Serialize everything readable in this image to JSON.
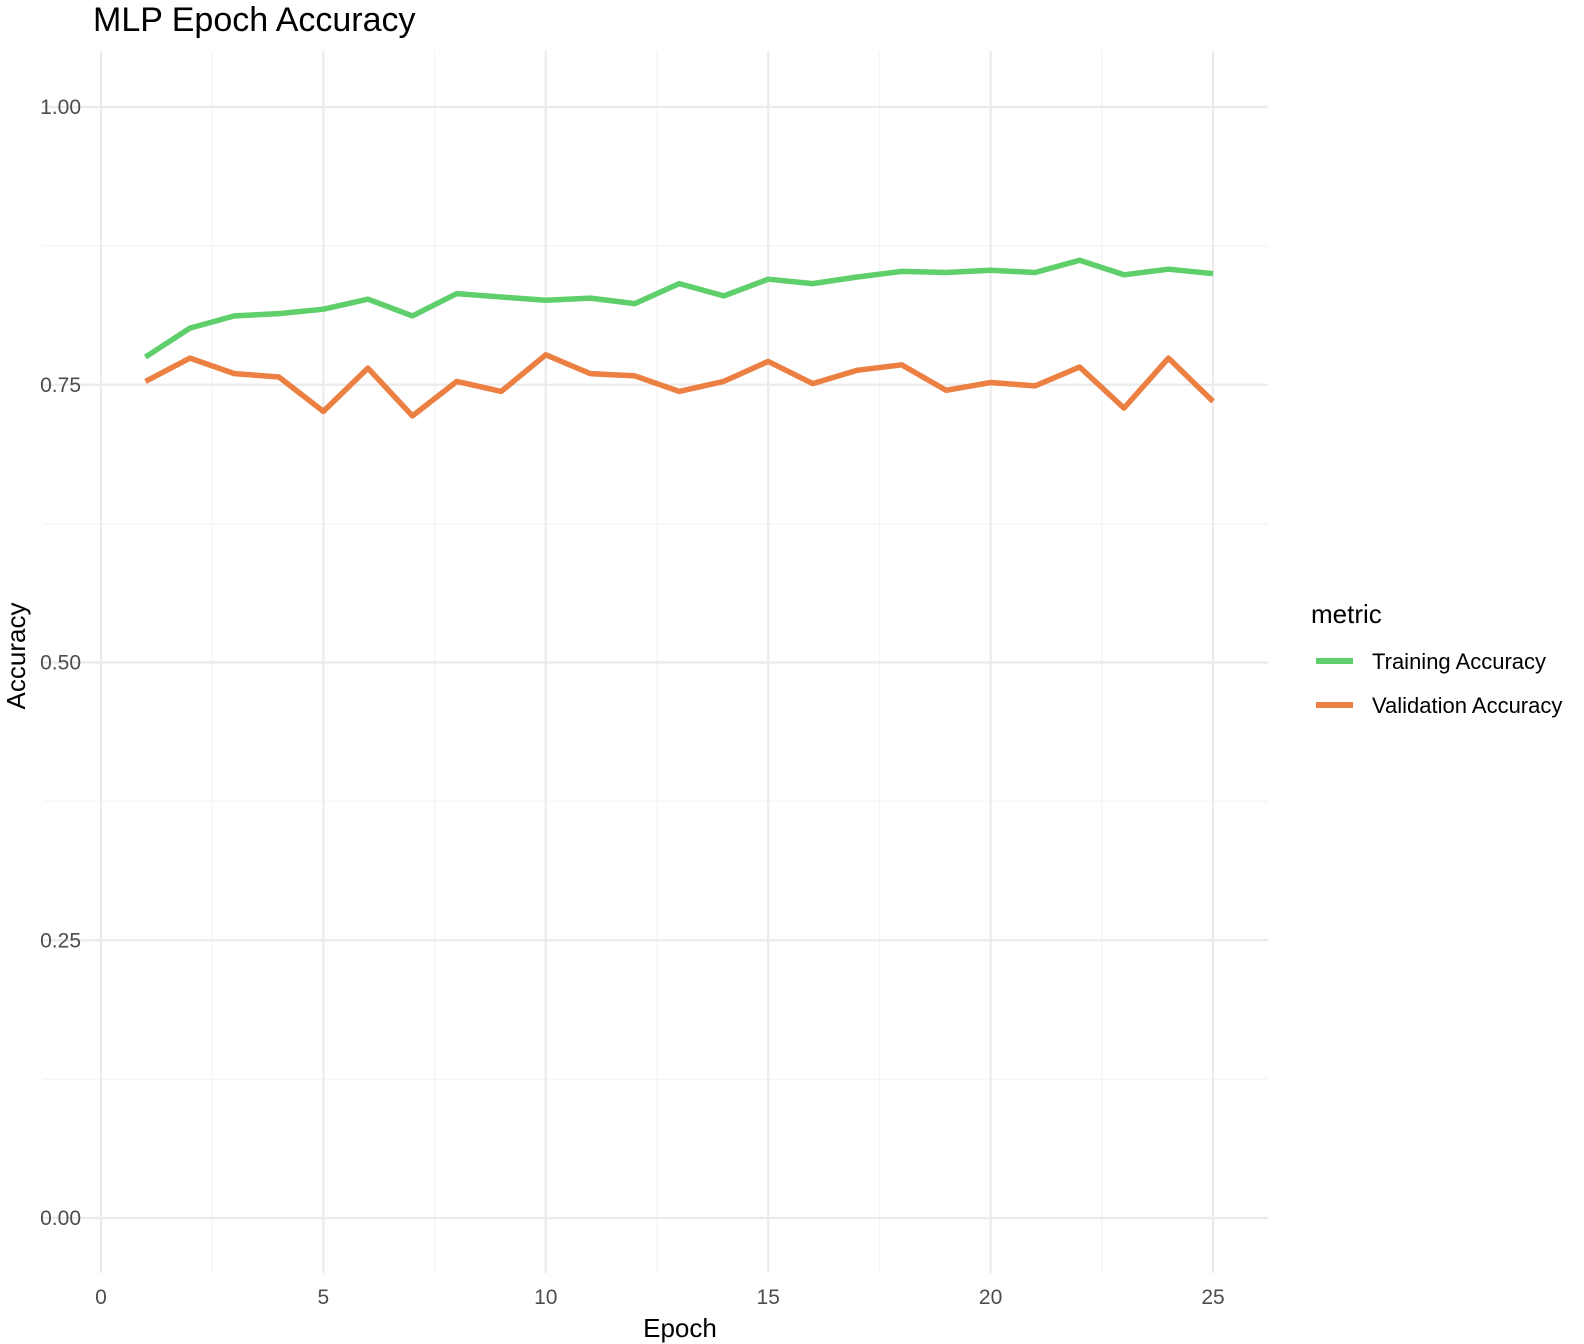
{
  "chart_data": {
    "type": "line",
    "title": "MLP Epoch Accuracy",
    "xlabel": "Epoch",
    "ylabel": "Accuracy",
    "xlim": [
      0,
      25
    ],
    "ylim": [
      0,
      1
    ],
    "x_ticks": [
      "0",
      "5",
      "10",
      "15",
      "20",
      "25"
    ],
    "y_ticks": [
      "0.00",
      "0.25",
      "0.50",
      "0.75",
      "1.00"
    ],
    "grid": true,
    "legend": {
      "title": "metric",
      "placement": "right"
    },
    "x": [
      1,
      2,
      3,
      4,
      5,
      6,
      7,
      8,
      9,
      10,
      11,
      12,
      13,
      14,
      15,
      16,
      17,
      18,
      19,
      20,
      21,
      22,
      23,
      24,
      25
    ],
    "series": [
      {
        "name": "Training Accuracy",
        "color": "#5ecf6a",
        "values": [
          0.775,
          0.801,
          0.812,
          0.814,
          0.818,
          0.827,
          0.812,
          0.832,
          0.829,
          0.826,
          0.828,
          0.823,
          0.841,
          0.83,
          0.845,
          0.841,
          0.847,
          0.852,
          0.851,
          0.853,
          0.851,
          0.862,
          0.849,
          0.854,
          0.85
        ]
      },
      {
        "name": "Validation Accuracy",
        "color": "#ec7f42",
        "values": [
          0.753,
          0.774,
          0.76,
          0.757,
          0.726,
          0.765,
          0.722,
          0.753,
          0.744,
          0.777,
          0.76,
          0.758,
          0.744,
          0.753,
          0.771,
          0.751,
          0.763,
          0.768,
          0.745,
          0.752,
          0.749,
          0.766,
          0.729,
          0.774,
          0.735
        ]
      }
    ]
  }
}
